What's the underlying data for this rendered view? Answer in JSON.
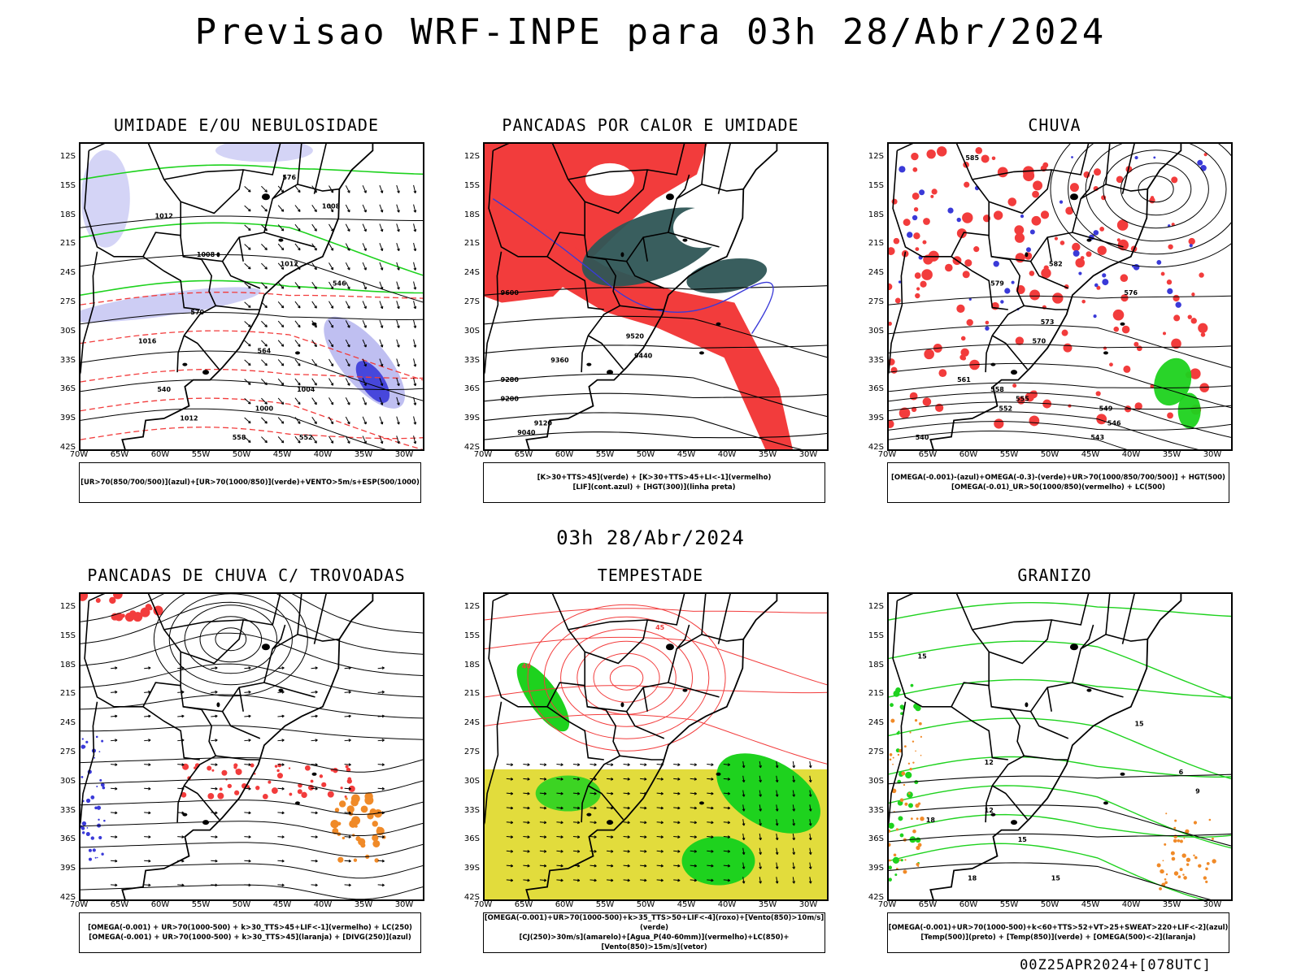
{
  "main_title": "Previsao WRF-INPE  para 03h 28/Abr/2024",
  "mid_title": "03h 28/Abr/2024",
  "footer": "00Z25APR2024+[078UTC]",
  "lat_labels": [
    "12S",
    "15S",
    "18S",
    "21S",
    "24S",
    "27S",
    "30S",
    "33S",
    "36S",
    "39S",
    "42S"
  ],
  "lon_labels": [
    "70W",
    "65W",
    "60W",
    "55W",
    "50W",
    "45W",
    "40W",
    "35W",
    "30W"
  ],
  "panels": [
    {
      "title": "UMIDADE E/OU NEBULOSIDADE",
      "legend": [
        "[UR>70(850/700/500)](azul)+[UR>70(1000/850)](verde)+VENTO>5m/s+ESP(500/1000)"
      ],
      "contour_labels": [
        "1012",
        "1008",
        "1016",
        "1012",
        "1004",
        "1000",
        "1012",
        "1008",
        "576",
        "570",
        "564",
        "558",
        "552",
        "546",
        "540"
      ]
    },
    {
      "title": "PANCADAS POR CALOR E UMIDADE",
      "legend": [
        "[K>30+TTS>45](verde) + [K>30+TTS>45+LI<-1](vermelho)",
        "[LIF](cont.azul) + [HGT(300)](linha preta)"
      ],
      "contour_labels": [
        "9600",
        "9520",
        "9440",
        "9360",
        "9280",
        "9200",
        "9120",
        "9040"
      ]
    },
    {
      "title": "CHUVA",
      "legend": [
        "[OMEGA(-0.001)-(azul)+OMEGA(-0.3)-(verde)+UR>70(1000/850/700/500)] + HGT(500)",
        "[OMEGA(-0.01)_UR>50(1000/850)(vermelho) + LC(500)"
      ],
      "contour_labels": [
        "585",
        "582",
        "579",
        "576",
        "573",
        "570",
        "561",
        "558",
        "555",
        "552",
        "549",
        "546",
        "543",
        "540"
      ]
    },
    {
      "title": "PANCADAS DE CHUVA C/ TROVOADAS",
      "legend": [
        "[OMEGA(-0.001) + UR>70(1000-500) + k>30_TTS>45+LIF<-1](vermelho) + LC(250)",
        "[OMEGA(-0.001) + UR>70(1000-500) + k>30_TTS>45](laranja) + [DIVG(250)](azul)"
      ],
      "contour_labels": []
    },
    {
      "title": "TEMPESTADE",
      "legend": [
        "[OMEGA(-0.001)+UR>70(1000-500)+k>35_TTS>50+LIF<-4](roxo)+[Vento(850)>10m/s](verde)",
        "[CJ(250)>30m/s](amarelo)+[Agua_P(40-60mm)](vermelho)+LC(850)+[Vento(850)>15m/s](vetor)"
      ],
      "contour_labels": [
        "40",
        "45"
      ]
    },
    {
      "title": "GRANIZO",
      "legend": [
        "[OMEGA(-0.001)+UR>70(1000-500)+k<60+TTS>52+VT>25+SWEAT>220+LIF<-2](azul)",
        "[Temp(500)](preto) + [Temp(850)](verde) + [OMEGA(500)<-2](laranja)"
      ],
      "contour_labels": [
        "15",
        "18",
        "12",
        "15",
        "12",
        "18",
        "15",
        "9",
        "6",
        "15"
      ]
    }
  ],
  "colors": {
    "blue_fill": "#b8b8f0",
    "blue_dark": "#3a3ad8",
    "green": "#1ed21e",
    "red": "#f23c3c",
    "dark_teal": "#2e5555",
    "yellow": "#e2dc3c",
    "orange": "#f08a28",
    "black": "#000000"
  }
}
